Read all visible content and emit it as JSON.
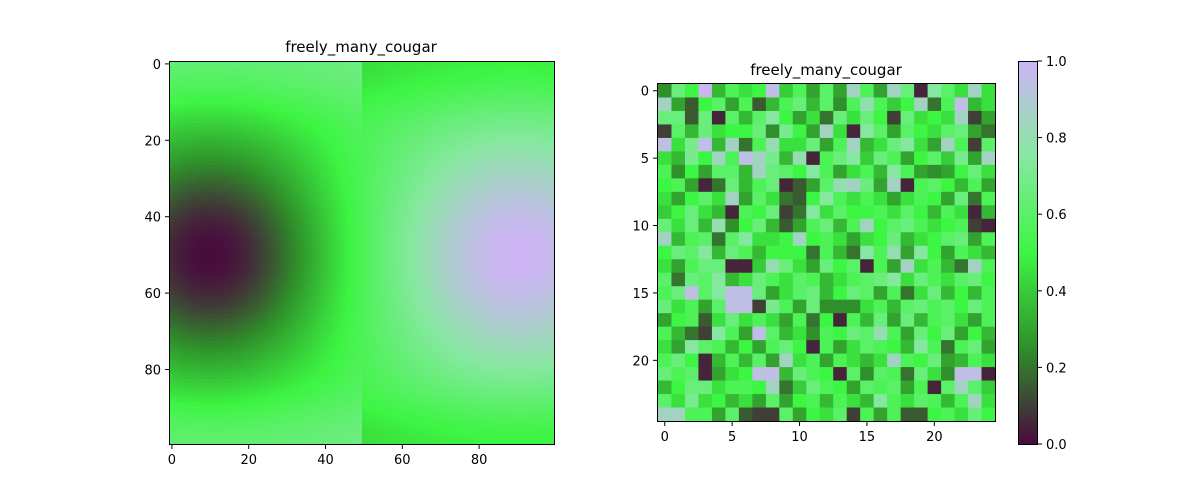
{
  "chart_data": [
    {
      "type": "heatmap",
      "title": "freely_many_cougar",
      "xlabel": "",
      "ylabel": "",
      "rows": 100,
      "cols": 100,
      "xlim": [
        0,
        99
      ],
      "ylim": [
        99,
        0
      ],
      "xticks": [
        0,
        20,
        40,
        60,
        80
      ],
      "yticks": [
        0,
        20,
        40,
        60,
        80
      ],
      "field": "smooth gradient: dark blob centered near (x=10, y=50); light lavender blob centered near (x=90, y=50); bright green elsewhere",
      "grid": false
    },
    {
      "type": "heatmap",
      "title": "freely_many_cougar",
      "xlabel": "",
      "ylabel": "",
      "rows": 25,
      "cols": 25,
      "xlim": [
        0,
        24
      ],
      "ylim": [
        24,
        0
      ],
      "xticks": [
        0,
        5,
        10,
        15,
        20
      ],
      "yticks": [
        0,
        5,
        10,
        15,
        20
      ],
      "values": [
        [
          0.25,
          0.65,
          0.5,
          0.98,
          0.35,
          0.55,
          0.45,
          0.5,
          0.95,
          0.4,
          0.55,
          0.3,
          0.6,
          0.3,
          0.85,
          0.55,
          0.3,
          0.85,
          0.65,
          0.05,
          0.75,
          0.6,
          0.45,
          0.85,
          0.45
        ],
        [
          0.85,
          0.3,
          0.15,
          0.5,
          0.6,
          0.3,
          0.55,
          0.15,
          0.35,
          0.55,
          0.65,
          0.35,
          0.6,
          0.25,
          0.55,
          0.8,
          0.55,
          0.4,
          0.5,
          0.85,
          0.2,
          0.55,
          0.95,
          0.35,
          0.45
        ],
        [
          0.65,
          0.65,
          0.15,
          0.65,
          0.05,
          0.6,
          0.35,
          0.6,
          0.75,
          0.5,
          0.3,
          0.45,
          0.2,
          0.65,
          0.45,
          0.65,
          0.5,
          0.1,
          0.65,
          0.45,
          0.5,
          0.45,
          0.85,
          0.1,
          0.3
        ],
        [
          0.1,
          0.6,
          0.35,
          0.65,
          0.45,
          0.5,
          0.5,
          0.65,
          0.25,
          0.7,
          0.5,
          0.3,
          0.85,
          0.45,
          0.05,
          0.75,
          0.6,
          0.3,
          0.6,
          0.5,
          0.45,
          0.6,
          0.65,
          0.3,
          0.2
        ],
        [
          0.95,
          0.45,
          0.7,
          0.95,
          0.35,
          0.85,
          0.2,
          0.55,
          0.8,
          0.45,
          0.45,
          0.65,
          0.3,
          0.55,
          0.85,
          0.35,
          0.45,
          0.65,
          0.75,
          0.45,
          0.3,
          0.85,
          0.55,
          0.1,
          0.6
        ],
        [
          0.45,
          0.35,
          0.7,
          0.5,
          0.85,
          0.55,
          0.95,
          0.85,
          0.7,
          0.35,
          0.8,
          0.05,
          0.55,
          0.65,
          0.75,
          0.4,
          0.65,
          0.55,
          0.3,
          0.5,
          0.6,
          0.4,
          0.7,
          0.3,
          0.85
        ],
        [
          0.55,
          0.25,
          0.5,
          0.3,
          0.6,
          0.6,
          0.35,
          0.85,
          0.65,
          0.6,
          0.5,
          0.75,
          0.55,
          0.3,
          0.45,
          0.55,
          0.35,
          0.75,
          0.55,
          0.3,
          0.25,
          0.3,
          0.5,
          0.65,
          0.45
        ],
        [
          0.5,
          0.55,
          0.3,
          0.05,
          0.2,
          0.65,
          0.35,
          0.55,
          0.65,
          0.05,
          0.15,
          0.3,
          0.6,
          0.8,
          0.85,
          0.65,
          0.3,
          0.85,
          0.05,
          0.55,
          0.6,
          0.5,
          0.35,
          0.55,
          0.3
        ],
        [
          0.45,
          0.3,
          0.5,
          0.6,
          0.45,
          0.85,
          0.3,
          0.6,
          0.45,
          0.2,
          0.15,
          0.5,
          0.75,
          0.55,
          0.45,
          0.55,
          0.45,
          0.3,
          0.45,
          0.55,
          0.5,
          0.3,
          0.65,
          0.2,
          0.55
        ],
        [
          0.4,
          0.5,
          0.65,
          0.45,
          0.35,
          0.05,
          0.55,
          0.5,
          0.65,
          0.1,
          0.2,
          0.75,
          0.45,
          0.6,
          0.5,
          0.5,
          0.55,
          0.45,
          0.6,
          0.5,
          0.35,
          0.55,
          0.45,
          0.05,
          0.35
        ],
        [
          0.65,
          0.45,
          0.65,
          0.35,
          0.8,
          0.25,
          0.5,
          0.65,
          0.35,
          0.15,
          0.3,
          0.55,
          0.65,
          0.35,
          0.55,
          0.85,
          0.5,
          0.6,
          0.65,
          0.55,
          0.45,
          0.5,
          0.55,
          0.1,
          0.05
        ],
        [
          0.85,
          0.35,
          0.55,
          0.6,
          0.2,
          0.6,
          0.75,
          0.45,
          0.45,
          0.5,
          0.85,
          0.5,
          0.55,
          0.45,
          0.3,
          0.45,
          0.5,
          0.65,
          0.35,
          0.45,
          0.5,
          0.6,
          0.65,
          0.3,
          0.55
        ],
        [
          0.5,
          0.65,
          0.6,
          0.75,
          0.35,
          0.65,
          0.55,
          0.35,
          0.5,
          0.5,
          0.5,
          0.2,
          0.55,
          0.35,
          0.2,
          0.75,
          0.55,
          0.8,
          0.3,
          0.75,
          0.5,
          0.3,
          0.55,
          0.45,
          0.35
        ],
        [
          0.45,
          0.3,
          0.55,
          0.65,
          0.65,
          0.05,
          0.05,
          0.4,
          0.8,
          0.65,
          0.45,
          0.3,
          0.65,
          0.5,
          0.6,
          0.05,
          0.55,
          0.3,
          0.85,
          0.45,
          0.55,
          0.35,
          0.2,
          0.85,
          0.55
        ],
        [
          0.6,
          0.2,
          0.65,
          0.6,
          0.75,
          0.35,
          0.45,
          0.65,
          0.55,
          0.45,
          0.6,
          0.55,
          0.35,
          0.45,
          0.55,
          0.6,
          0.65,
          0.75,
          0.45,
          0.65,
          0.55,
          0.45,
          0.6,
          0.65,
          0.5
        ],
        [
          0.55,
          0.65,
          0.95,
          0.6,
          0.75,
          0.95,
          0.95,
          0.65,
          0.3,
          0.45,
          0.6,
          0.65,
          0.35,
          0.5,
          0.65,
          0.6,
          0.3,
          0.55,
          0.2,
          0.45,
          0.65,
          0.35,
          0.5,
          0.35,
          0.55
        ],
        [
          0.65,
          0.45,
          0.55,
          0.3,
          0.6,
          0.95,
          0.95,
          0.1,
          0.7,
          0.55,
          0.3,
          0.65,
          0.25,
          0.25,
          0.25,
          0.45,
          0.55,
          0.35,
          0.6,
          0.65,
          0.55,
          0.6,
          0.5,
          0.65,
          0.55
        ],
        [
          0.3,
          0.5,
          0.55,
          0.15,
          0.45,
          0.65,
          0.45,
          0.55,
          0.45,
          0.3,
          0.55,
          0.2,
          0.5,
          0.05,
          0.55,
          0.35,
          0.65,
          0.3,
          0.65,
          0.35,
          0.55,
          0.6,
          0.45,
          0.3,
          0.55
        ],
        [
          0.55,
          0.35,
          0.2,
          0.1,
          0.75,
          0.55,
          0.3,
          0.95,
          0.6,
          0.35,
          0.45,
          0.25,
          0.55,
          0.5,
          0.65,
          0.6,
          0.8,
          0.55,
          0.3,
          0.65,
          0.5,
          0.65,
          0.3,
          0.5,
          0.35
        ],
        [
          0.45,
          0.3,
          0.75,
          0.6,
          0.55,
          0.35,
          0.5,
          0.3,
          0.55,
          0.65,
          0.5,
          0.05,
          0.55,
          0.3,
          0.45,
          0.6,
          0.55,
          0.5,
          0.35,
          0.75,
          0.55,
          0.2,
          0.55,
          0.65,
          0.3
        ],
        [
          0.55,
          0.65,
          0.5,
          0.05,
          0.35,
          0.55,
          0.35,
          0.6,
          0.3,
          0.85,
          0.45,
          0.55,
          0.3,
          0.55,
          0.45,
          0.35,
          0.45,
          0.85,
          0.55,
          0.5,
          0.65,
          0.3,
          0.35,
          0.55,
          0.45
        ],
        [
          0.65,
          0.55,
          0.6,
          0.05,
          0.3,
          0.45,
          0.5,
          0.95,
          0.95,
          0.35,
          0.65,
          0.55,
          0.5,
          0.05,
          0.6,
          0.25,
          0.6,
          0.55,
          0.2,
          0.65,
          0.45,
          0.25,
          0.95,
          0.95,
          0.05
        ],
        [
          0.35,
          0.5,
          0.65,
          0.65,
          0.45,
          0.55,
          0.55,
          0.5,
          0.85,
          0.2,
          0.4,
          0.65,
          0.55,
          0.5,
          0.3,
          0.6,
          0.55,
          0.6,
          0.3,
          0.55,
          0.05,
          0.6,
          0.85,
          0.6,
          0.4
        ],
        [
          0.6,
          0.45,
          0.7,
          0.45,
          0.5,
          0.35,
          0.45,
          0.3,
          0.6,
          0.3,
          0.5,
          0.55,
          0.35,
          0.55,
          0.45,
          0.35,
          0.75,
          0.55,
          0.45,
          0.6,
          0.55,
          0.35,
          0.55,
          0.85,
          0.45
        ],
        [
          0.85,
          0.85,
          0.55,
          0.55,
          0.3,
          0.6,
          0.15,
          0.1,
          0.1,
          0.6,
          0.3,
          0.5,
          0.45,
          0.6,
          0.1,
          0.55,
          0.3,
          0.55,
          0.15,
          0.15,
          0.5,
          0.55,
          0.45,
          0.65,
          0.5
        ]
      ],
      "colorbar": {
        "min": 0.0,
        "max": 1.0,
        "ticks": [
          "0.0",
          "0.2",
          "0.4",
          "0.6",
          "0.8",
          "1.0"
        ]
      },
      "grid": false
    }
  ],
  "colormap": [
    "#4a0a3e",
    "#2f8f2a",
    "#3df543",
    "#86e8a0",
    "#cdb3f5"
  ]
}
